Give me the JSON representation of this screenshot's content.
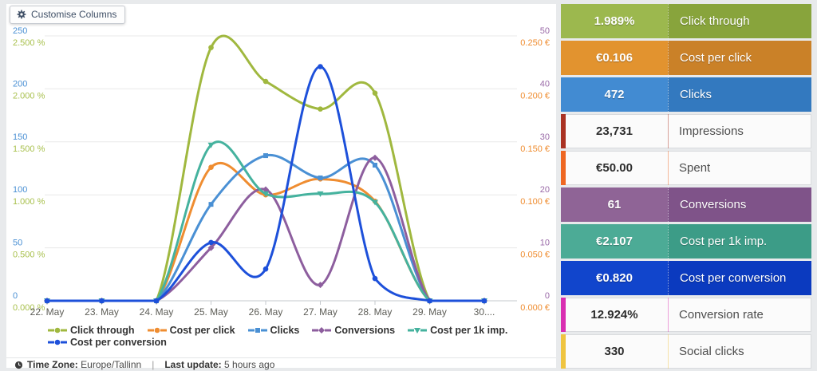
{
  "toolbar": {
    "customise_button": "Customise Columns"
  },
  "status_bar": {
    "timezone_label": "Time Zone:",
    "timezone_value": "Europe/Tallinn",
    "divider": "|",
    "last_update_label": "Last update:",
    "last_update_value": "5 hours ago"
  },
  "chart_data": {
    "type": "line",
    "title": "",
    "grid": true,
    "legend_position": "bottom",
    "x_categories": [
      "22. May",
      "23. May",
      "24. May",
      "25. May",
      "26. May",
      "27. May",
      "28. May",
      "29. May",
      "30...."
    ],
    "axes": {
      "left_primary": {
        "name": "Clicks",
        "color": "#4a90d4",
        "max": 250,
        "ticks": [
          "0",
          "50",
          "100",
          "150",
          "200",
          "250"
        ]
      },
      "left_secondary": {
        "name": "Click through %",
        "color": "#a8c04d",
        "max": 2.5,
        "ticks": [
          "0.000 %",
          "0.500 %",
          "1.000 %",
          "1.500 %",
          "2.000 %",
          "2.500 %"
        ]
      },
      "right_primary": {
        "name": "Conversions",
        "color": "#9a6aa8",
        "max": 50,
        "ticks": [
          "0",
          "10",
          "20",
          "30",
          "40",
          "50"
        ]
      },
      "right_secondary": {
        "name": "Cost €",
        "color": "#ef8d31",
        "max": 0.25,
        "ticks": [
          "0.000 €",
          "0.050 €",
          "0.100 €",
          "0.150 €",
          "0.200 €",
          "0.250 €"
        ]
      }
    },
    "series": [
      {
        "name": "Click through",
        "color": "#a0b83f",
        "marker": "circle",
        "axis_max": 2.5,
        "values": [
          0,
          0,
          0,
          2.39,
          2.07,
          1.81,
          1.96,
          0,
          0
        ]
      },
      {
        "name": "Cost per click",
        "color": "#ef8d31",
        "marker": "circle",
        "axis_max": 0.25,
        "values": [
          0,
          0,
          0,
          0.126,
          0.1,
          0.115,
          0.094,
          0,
          0
        ]
      },
      {
        "name": "Clicks",
        "color": "#4a90d4",
        "marker": "square",
        "axis_max": 250,
        "values": [
          0,
          0,
          0,
          91,
          137,
          116,
          128,
          0,
          0
        ]
      },
      {
        "name": "Conversions",
        "color": "#8d5e9e",
        "marker": "diamond",
        "axis_max": 50,
        "values": [
          0,
          0,
          0,
          10,
          21,
          3,
          27,
          0,
          0
        ]
      },
      {
        "name": "Cost per 1k imp.",
        "color": "#45b29e",
        "marker": "triangle-down",
        "axis_max": 0.25,
        "values": [
          0,
          0,
          0,
          0.147,
          0.101,
          0.101,
          0.093,
          0,
          0
        ]
      },
      {
        "name": "Cost per conversion",
        "color": "#1d50da",
        "marker": "circle",
        "axis_max": 0.25,
        "values": [
          0,
          0,
          0,
          0.055,
          0.03,
          0.221,
          0.021,
          0,
          0
        ]
      }
    ],
    "legend_rows": [
      [
        0,
        1,
        2,
        3,
        4
      ],
      [
        5
      ]
    ]
  },
  "metrics": [
    {
      "value": "1.989%",
      "label": "Click through",
      "style": "filled",
      "color_value": "#9cb84e",
      "color_label": "#88a43c"
    },
    {
      "value": "€0.106",
      "label": "Cost per click",
      "style": "filled",
      "color_value": "#e2932f",
      "color_label": "#ca8128"
    },
    {
      "value": "472",
      "label": "Clicks",
      "style": "filled",
      "color_value": "#428bd2",
      "color_label": "#3379bf"
    },
    {
      "value": "23,731",
      "label": "Impressions",
      "style": "stripe",
      "stripe_color": "#aa3223"
    },
    {
      "value": "€50.00",
      "label": "Spent",
      "style": "stripe",
      "stripe_color": "#ee6722"
    },
    {
      "value": "61",
      "label": "Conversions",
      "style": "filled",
      "color_value": "#8f6496",
      "color_label": "#7f5389"
    },
    {
      "value": "€2.107",
      "label": "Cost per 1k imp.",
      "style": "filled",
      "color_value": "#4cab96",
      "color_label": "#3c9c87"
    },
    {
      "value": "€0.820",
      "label": "Cost per conversion",
      "style": "filled",
      "color_value": "#1145cc",
      "color_label": "#0b3abf"
    },
    {
      "value": "12.924%",
      "label": "Conversion rate",
      "style": "stripe",
      "stripe_color": "#d92fb1"
    },
    {
      "value": "330",
      "label": "Social clicks",
      "style": "stripe",
      "stripe_color": "#efc440"
    }
  ]
}
